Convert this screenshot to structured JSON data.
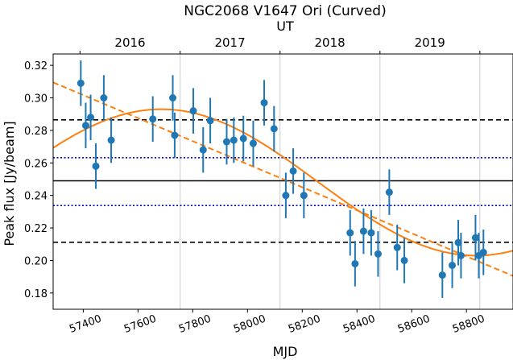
{
  "chart_data": {
    "type": "scatter",
    "title": "NGC2068 V1647 Ori (Curved)",
    "xlabel": "MJD",
    "ylabel": "Peak flux [Jy/beam]",
    "top_xlabel": "UT",
    "xlim": [
      57290,
      58970
    ],
    "ylim": [
      0.17,
      0.327
    ],
    "x_ticks": [
      57400,
      57600,
      57800,
      58000,
      58200,
      58400,
      58600,
      58800
    ],
    "x_tick_labels": [
      "57400",
      "57600",
      "57800",
      "58000",
      "58200",
      "58400",
      "58600",
      "58800"
    ],
    "y_ticks": [
      0.18,
      0.2,
      0.22,
      0.24,
      0.26,
      0.28,
      0.3,
      0.32
    ],
    "y_tick_labels": [
      "0.18",
      "0.20",
      "0.22",
      "0.24",
      "0.26",
      "0.28",
      "0.30",
      "0.32"
    ],
    "top_ticks": [
      57388,
      57754,
      58119,
      58484,
      58849
    ],
    "year_labels": [
      {
        "label": "2016",
        "x": 57571
      },
      {
        "label": "2017",
        "x": 57936
      },
      {
        "label": "2018",
        "x": 58301
      },
      {
        "label": "2019",
        "x": 58666
      }
    ],
    "year_gridlines": [
      57754,
      58119,
      58484,
      58849
    ],
    "points": [
      {
        "x": 57391,
        "y": 0.309,
        "err": 0.014
      },
      {
        "x": 57409,
        "y": 0.283,
        "err": 0.014
      },
      {
        "x": 57427,
        "y": 0.288,
        "err": 0.014
      },
      {
        "x": 57446,
        "y": 0.258,
        "err": 0.014
      },
      {
        "x": 57475,
        "y": 0.3,
        "err": 0.014
      },
      {
        "x": 57502,
        "y": 0.274,
        "err": 0.014
      },
      {
        "x": 57654,
        "y": 0.287,
        "err": 0.014
      },
      {
        "x": 57727,
        "y": 0.3,
        "err": 0.014
      },
      {
        "x": 57734,
        "y": 0.277,
        "err": 0.014
      },
      {
        "x": 57802,
        "y": 0.292,
        "err": 0.014
      },
      {
        "x": 57838,
        "y": 0.268,
        "err": 0.014
      },
      {
        "x": 57864,
        "y": 0.286,
        "err": 0.014
      },
      {
        "x": 57924,
        "y": 0.273,
        "err": 0.014
      },
      {
        "x": 57950,
        "y": 0.274,
        "err": 0.014
      },
      {
        "x": 57985,
        "y": 0.275,
        "err": 0.014
      },
      {
        "x": 58021,
        "y": 0.272,
        "err": 0.014
      },
      {
        "x": 58061,
        "y": 0.297,
        "err": 0.014
      },
      {
        "x": 58097,
        "y": 0.281,
        "err": 0.014
      },
      {
        "x": 58140,
        "y": 0.24,
        "err": 0.014
      },
      {
        "x": 58167,
        "y": 0.255,
        "err": 0.014
      },
      {
        "x": 58206,
        "y": 0.24,
        "err": 0.014
      },
      {
        "x": 58375,
        "y": 0.217,
        "err": 0.014
      },
      {
        "x": 58393,
        "y": 0.198,
        "err": 0.014
      },
      {
        "x": 58424,
        "y": 0.218,
        "err": 0.014
      },
      {
        "x": 58452,
        "y": 0.217,
        "err": 0.014
      },
      {
        "x": 58477,
        "y": 0.204,
        "err": 0.014
      },
      {
        "x": 58518,
        "y": 0.242,
        "err": 0.014
      },
      {
        "x": 58547,
        "y": 0.208,
        "err": 0.014
      },
      {
        "x": 58573,
        "y": 0.2,
        "err": 0.014
      },
      {
        "x": 58712,
        "y": 0.191,
        "err": 0.014
      },
      {
        "x": 58748,
        "y": 0.197,
        "err": 0.014
      },
      {
        "x": 58770,
        "y": 0.211,
        "err": 0.014
      },
      {
        "x": 58780,
        "y": 0.203,
        "err": 0.014
      },
      {
        "x": 58833,
        "y": 0.214,
        "err": 0.014
      },
      {
        "x": 58845,
        "y": 0.203,
        "err": 0.014
      },
      {
        "x": 58862,
        "y": 0.205,
        "err": 0.014
      }
    ],
    "mean": 0.249,
    "std_lines": [
      0.2632,
      0.2338
    ],
    "spread_lines": [
      0.2865,
      0.2112
    ],
    "linear_fit": {
      "x0": 57290,
      "y0": 0.3095,
      "x1": 58970,
      "y1": 0.1905
    },
    "sine_fit": {
      "offset": 0.248,
      "amplitude": 0.045,
      "period": 2300,
      "peak_x": 57685
    },
    "colors": {
      "points": "#1f77b4",
      "fits": "#ff7f0e",
      "mean": "#000000",
      "spread": "#000000",
      "std": "#0000cc",
      "grid": "#cccccc"
    },
    "grid": false,
    "legend": "none"
  }
}
